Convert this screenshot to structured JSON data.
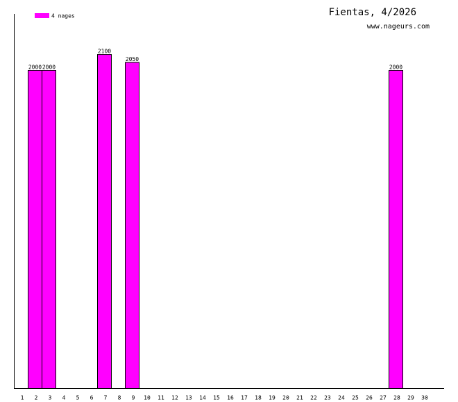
{
  "chart_data": {
    "type": "bar",
    "title": "Fientas, 4/2026",
    "subtitle": "www.nageurs.com",
    "categories": [
      "1",
      "2",
      "3",
      "4",
      "5",
      "6",
      "7",
      "8",
      "9",
      "10",
      "11",
      "12",
      "13",
      "14",
      "15",
      "16",
      "17",
      "18",
      "19",
      "20",
      "21",
      "22",
      "23",
      "24",
      "25",
      "26",
      "27",
      "28",
      "29",
      "30"
    ],
    "series": [
      {
        "name": "4 nages",
        "color": "#ff00ff",
        "values": [
          null,
          2000,
          2000,
          null,
          null,
          null,
          2100,
          null,
          2050,
          null,
          null,
          null,
          null,
          null,
          null,
          null,
          null,
          null,
          null,
          null,
          null,
          null,
          null,
          null,
          null,
          null,
          null,
          2000,
          null,
          null
        ]
      }
    ]
  }
}
